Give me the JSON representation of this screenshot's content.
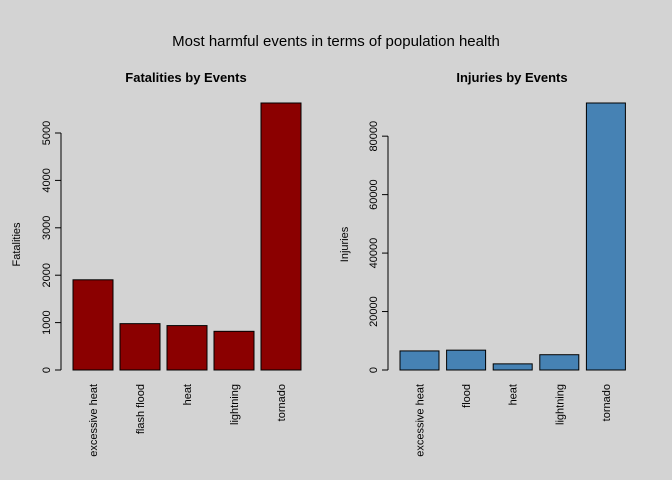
{
  "title": "Most harmful events in terms of population health",
  "chart_data": [
    {
      "type": "bar",
      "title": "Fatalities by Events",
      "xlabel": "",
      "ylabel": "Fatalities",
      "categories": [
        "excessive heat",
        "flash flood",
        "heat",
        "lightning",
        "tornado"
      ],
      "values": [
        1903,
        978,
        937,
        816,
        5633
      ],
      "yticks": [
        0,
        1000,
        2000,
        3000,
        4000,
        5000
      ],
      "ylim": [
        0,
        5633
      ],
      "bar_color": "#8b0000",
      "grid": false
    },
    {
      "type": "bar",
      "title": "Injuries by Events",
      "xlabel": "",
      "ylabel": "Injuries",
      "categories": [
        "excessive heat",
        "flood",
        "heat",
        "lightning",
        "tornado"
      ],
      "values": [
        6525,
        6789,
        2100,
        5230,
        91346
      ],
      "yticks": [
        0,
        20000,
        40000,
        60000,
        80000
      ],
      "ylim": [
        0,
        91346
      ],
      "bar_color": "#4682b4",
      "grid": false
    }
  ]
}
